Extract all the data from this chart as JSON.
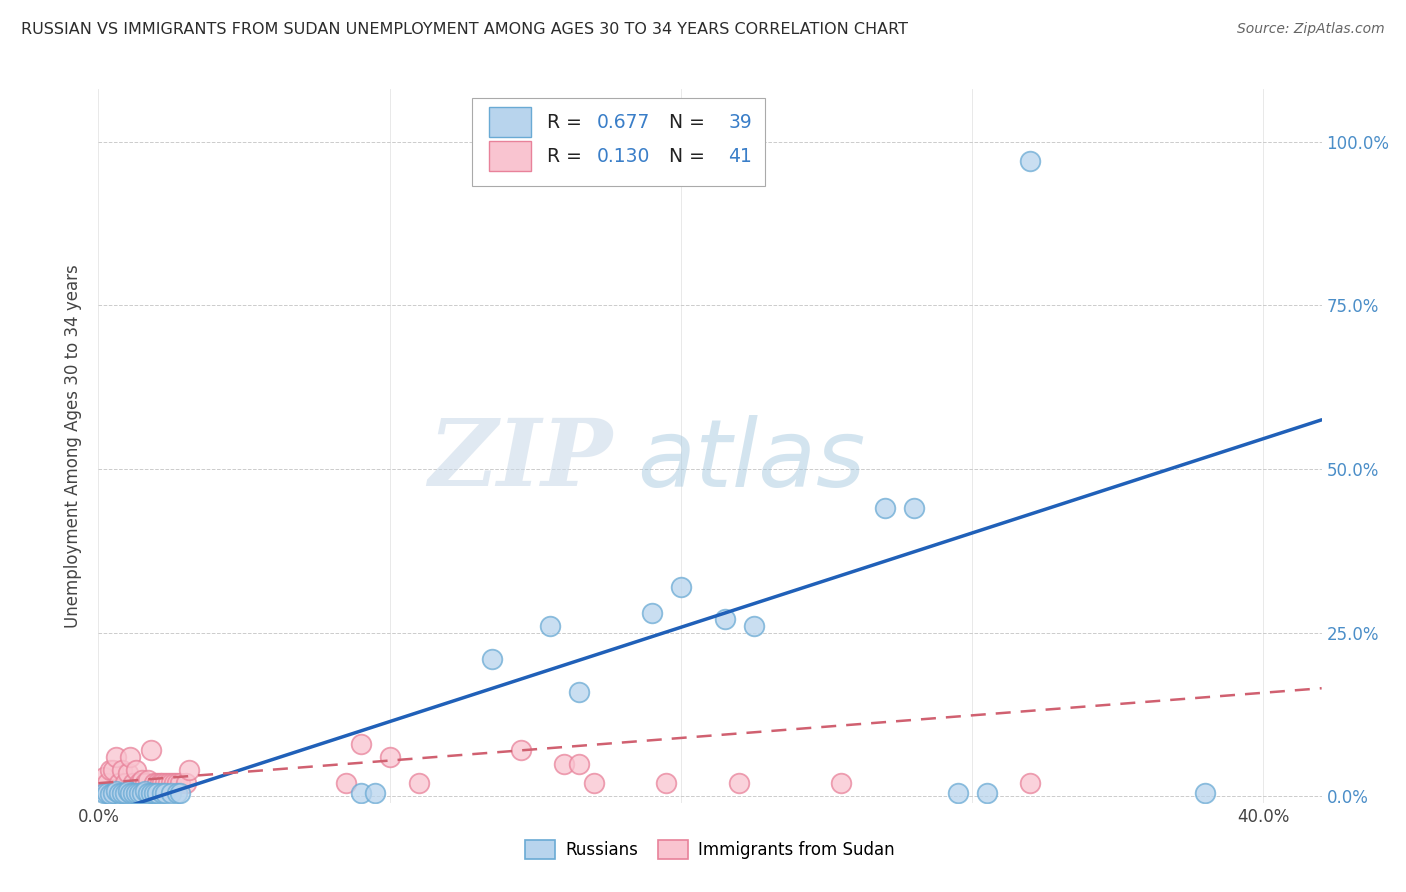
{
  "title": "RUSSIAN VS IMMIGRANTS FROM SUDAN UNEMPLOYMENT AMONG AGES 30 TO 34 YEARS CORRELATION CHART",
  "source": "Source: ZipAtlas.com",
  "ylabel_label": "Unemployment Among Ages 30 to 34 years",
  "xlabel_label_blue": "Russians",
  "xlabel_label_pink": "Immigrants from Sudan",
  "watermark_zip": "ZIP",
  "watermark_atlas": "atlas",
  "legend_blue_R": "0.677",
  "legend_blue_N": "39",
  "legend_pink_R": "0.130",
  "legend_pink_N": "41",
  "blue_scatter": [
    [
      0.002,
      0.005
    ],
    [
      0.003,
      0.005
    ],
    [
      0.004,
      0.003
    ],
    [
      0.005,
      0.005
    ],
    [
      0.006,
      0.008
    ],
    [
      0.007,
      0.005
    ],
    [
      0.008,
      0.005
    ],
    [
      0.009,
      0.005
    ],
    [
      0.01,
      0.008
    ],
    [
      0.011,
      0.005
    ],
    [
      0.012,
      0.005
    ],
    [
      0.013,
      0.005
    ],
    [
      0.014,
      0.005
    ],
    [
      0.015,
      0.005
    ],
    [
      0.016,
      0.008
    ],
    [
      0.017,
      0.005
    ],
    [
      0.018,
      0.005
    ],
    [
      0.019,
      0.005
    ],
    [
      0.02,
      0.005
    ],
    [
      0.022,
      0.005
    ],
    [
      0.023,
      0.005
    ],
    [
      0.025,
      0.005
    ],
    [
      0.027,
      0.005
    ],
    [
      0.028,
      0.005
    ],
    [
      0.09,
      0.005
    ],
    [
      0.095,
      0.005
    ],
    [
      0.135,
      0.21
    ],
    [
      0.155,
      0.26
    ],
    [
      0.165,
      0.16
    ],
    [
      0.19,
      0.28
    ],
    [
      0.2,
      0.32
    ],
    [
      0.215,
      0.27
    ],
    [
      0.225,
      0.26
    ],
    [
      0.27,
      0.44
    ],
    [
      0.28,
      0.44
    ],
    [
      0.295,
      0.005
    ],
    [
      0.305,
      0.005
    ],
    [
      0.32,
      0.97
    ],
    [
      0.38,
      0.005
    ]
  ],
  "pink_scatter": [
    [
      0.002,
      0.03
    ],
    [
      0.003,
      0.02
    ],
    [
      0.004,
      0.04
    ],
    [
      0.005,
      0.04
    ],
    [
      0.006,
      0.06
    ],
    [
      0.007,
      0.02
    ],
    [
      0.008,
      0.04
    ],
    [
      0.009,
      0.02
    ],
    [
      0.01,
      0.035
    ],
    [
      0.011,
      0.06
    ],
    [
      0.012,
      0.02
    ],
    [
      0.013,
      0.04
    ],
    [
      0.014,
      0.02
    ],
    [
      0.015,
      0.025
    ],
    [
      0.016,
      0.02
    ],
    [
      0.017,
      0.025
    ],
    [
      0.018,
      0.07
    ],
    [
      0.019,
      0.02
    ],
    [
      0.02,
      0.02
    ],
    [
      0.021,
      0.02
    ],
    [
      0.022,
      0.02
    ],
    [
      0.023,
      0.02
    ],
    [
      0.024,
      0.02
    ],
    [
      0.025,
      0.02
    ],
    [
      0.026,
      0.02
    ],
    [
      0.027,
      0.02
    ],
    [
      0.028,
      0.02
    ],
    [
      0.03,
      0.02
    ],
    [
      0.031,
      0.04
    ],
    [
      0.085,
      0.02
    ],
    [
      0.09,
      0.08
    ],
    [
      0.1,
      0.06
    ],
    [
      0.11,
      0.02
    ],
    [
      0.145,
      0.07
    ],
    [
      0.16,
      0.05
    ],
    [
      0.165,
      0.05
    ],
    [
      0.17,
      0.02
    ],
    [
      0.195,
      0.02
    ],
    [
      0.22,
      0.02
    ],
    [
      0.255,
      0.02
    ],
    [
      0.32,
      0.02
    ]
  ],
  "xlim": [
    0.0,
    0.42
  ],
  "ylim": [
    -0.01,
    1.08
  ],
  "blue_line_x": [
    0.0,
    0.42
  ],
  "blue_line_y": [
    -0.03,
    0.575
  ],
  "pink_line_x": [
    0.0,
    0.42
  ],
  "pink_line_y": [
    0.02,
    0.165
  ],
  "background_color": "#ffffff",
  "grid_color": "#cccccc",
  "title_color": "#333333",
  "right_tick_color": "#4b8ec8",
  "ytick_vals": [
    0.0,
    0.25,
    0.5,
    0.75,
    1.0
  ],
  "ytick_labels": [
    "0.0%",
    "25.0%",
    "50.0%",
    "75.0%",
    "100.0%"
  ],
  "xtick_ends": [
    "0.0%",
    "40.0%"
  ]
}
